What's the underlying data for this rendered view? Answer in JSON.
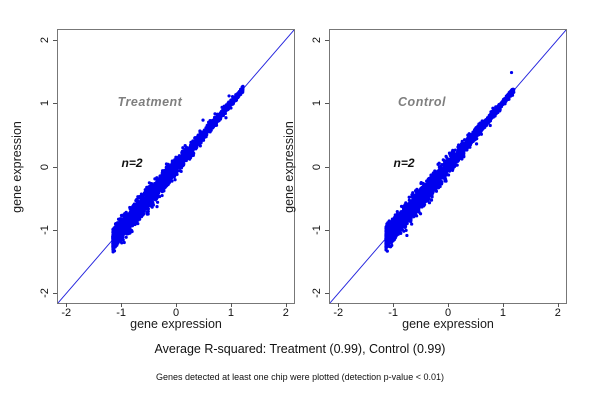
{
  "captions": {
    "line1": "Average R-squared: Treatment (0.99), Control (0.99)",
    "line2": "Genes detected at least one chip were plotted (detection p-value < 0.01)"
  },
  "chart_data": [
    {
      "type": "scatter",
      "panel": "Treatment",
      "xlabel": "gene expression",
      "ylabel": "gene expression",
      "xlim": [
        -2.15,
        2.15
      ],
      "ylim": [
        -2.15,
        2.15
      ],
      "xticks": [
        -2,
        -1,
        0,
        1,
        2
      ],
      "yticks": [
        -2,
        -1,
        0,
        1,
        2
      ],
      "grid": false,
      "legend": "none",
      "r_squared": 0.99,
      "n_replicates": 2,
      "annotations": [
        {
          "text": "Treatment",
          "color": "#7f7f7f"
        },
        {
          "text": "n=2",
          "color": "#111111"
        }
      ],
      "identity_line": {
        "slope": 1,
        "intercept": 0,
        "color": "#2222dd"
      },
      "point_color": "#0000ee",
      "point_radius": 1.6,
      "cloud": {
        "n_points": 2600,
        "x_min": -1.15,
        "x_max": 1.22,
        "skew": 1.55,
        "sd_base": 0.018,
        "sd_peak": 0.07,
        "sd_center": 0.22,
        "sd_width": 0.32,
        "outliers": 26,
        "outlier_sd": 0.11,
        "seed": 42
      }
    },
    {
      "type": "scatter",
      "panel": "Control",
      "xlabel": "gene expression",
      "ylabel": "gene expression",
      "xlim": [
        -2.15,
        2.15
      ],
      "ylim": [
        -2.15,
        2.15
      ],
      "xticks": [
        -2,
        -1,
        0,
        1,
        2
      ],
      "yticks": [
        -2,
        -1,
        0,
        1,
        2
      ],
      "grid": false,
      "legend": "none",
      "r_squared": 0.99,
      "n_replicates": 2,
      "annotations": [
        {
          "text": "Control",
          "color": "#7f7f7f"
        },
        {
          "text": "n=2",
          "color": "#111111"
        }
      ],
      "identity_line": {
        "slope": 1,
        "intercept": 0,
        "color": "#2222dd"
      },
      "point_color": "#0000ee",
      "point_radius": 1.6,
      "cloud": {
        "n_points": 2600,
        "x_min": -1.13,
        "x_max": 1.2,
        "skew": 1.55,
        "sd_base": 0.018,
        "sd_peak": 0.07,
        "sd_center": 0.22,
        "sd_width": 0.32,
        "outliers": 26,
        "outlier_sd": 0.11,
        "seed": 7
      }
    }
  ]
}
